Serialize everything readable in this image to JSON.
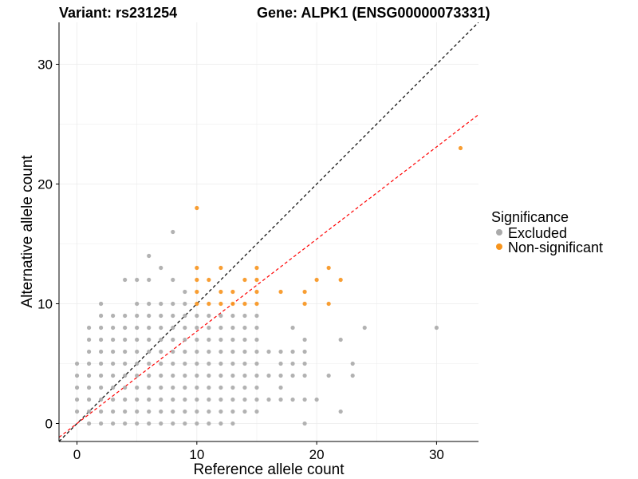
{
  "header": {
    "variant": "Variant: rs231254",
    "gene": "Gene: ALPK1 (ENSG00000073331)"
  },
  "chart_data": {
    "type": "scatter",
    "xlabel": "Reference allele count",
    "ylabel": "Alternative allele count",
    "xlim": [
      -1.5,
      33.5
    ],
    "ylim": [
      -1.5,
      33.5
    ],
    "x_ticks": [
      0,
      10,
      20,
      30
    ],
    "y_ticks": [
      0,
      10,
      20,
      30
    ],
    "grid": true,
    "legend": {
      "title": "Significance",
      "position": "right",
      "entries": [
        {
          "label": "Excluded",
          "color": "#AAAAAA"
        },
        {
          "label": "Non-significant",
          "color": "#F7941D"
        }
      ]
    },
    "reference_lines": [
      {
        "slope": 1,
        "intercept": 0,
        "color": "#000000",
        "style": "dashed"
      },
      {
        "slope": 0.77,
        "intercept": 0,
        "color": "#FF0000",
        "style": "dashed"
      }
    ],
    "series": [
      {
        "name": "Excluded",
        "color": "#AAAAAA",
        "points": [
          [
            0,
            1
          ],
          [
            0,
            2
          ],
          [
            0,
            3
          ],
          [
            0,
            4
          ],
          [
            0,
            5
          ],
          [
            1,
            0
          ],
          [
            1,
            1
          ],
          [
            1,
            2
          ],
          [
            1,
            3
          ],
          [
            1,
            4
          ],
          [
            1,
            5
          ],
          [
            1,
            6
          ],
          [
            1,
            7
          ],
          [
            1,
            8
          ],
          [
            2,
            0
          ],
          [
            2,
            1
          ],
          [
            2,
            2
          ],
          [
            2,
            3
          ],
          [
            2,
            4
          ],
          [
            2,
            5
          ],
          [
            2,
            6
          ],
          [
            2,
            7
          ],
          [
            2,
            8
          ],
          [
            2,
            9
          ],
          [
            2,
            10
          ],
          [
            3,
            0
          ],
          [
            3,
            1
          ],
          [
            3,
            2
          ],
          [
            3,
            3
          ],
          [
            3,
            4
          ],
          [
            3,
            5
          ],
          [
            3,
            6
          ],
          [
            3,
            7
          ],
          [
            3,
            8
          ],
          [
            3,
            9
          ],
          [
            4,
            0
          ],
          [
            4,
            1
          ],
          [
            4,
            2
          ],
          [
            4,
            3
          ],
          [
            4,
            4
          ],
          [
            4,
            5
          ],
          [
            4,
            6
          ],
          [
            4,
            7
          ],
          [
            4,
            8
          ],
          [
            4,
            9
          ],
          [
            4,
            12
          ],
          [
            5,
            0
          ],
          [
            5,
            1
          ],
          [
            5,
            2
          ],
          [
            5,
            3
          ],
          [
            5,
            4
          ],
          [
            5,
            5
          ],
          [
            5,
            6
          ],
          [
            5,
            7
          ],
          [
            5,
            8
          ],
          [
            5,
            9
          ],
          [
            5,
            10
          ],
          [
            5,
            12
          ],
          [
            6,
            0
          ],
          [
            6,
            1
          ],
          [
            6,
            2
          ],
          [
            6,
            3
          ],
          [
            6,
            4
          ],
          [
            6,
            5
          ],
          [
            6,
            6
          ],
          [
            6,
            7
          ],
          [
            6,
            8
          ],
          [
            6,
            9
          ],
          [
            6,
            10
          ],
          [
            6,
            12
          ],
          [
            6,
            14
          ],
          [
            7,
            0
          ],
          [
            7,
            1
          ],
          [
            7,
            2
          ],
          [
            7,
            3
          ],
          [
            7,
            4
          ],
          [
            7,
            5
          ],
          [
            7,
            6
          ],
          [
            7,
            7
          ],
          [
            7,
            8
          ],
          [
            7,
            9
          ],
          [
            7,
            10
          ],
          [
            7,
            13
          ],
          [
            8,
            0
          ],
          [
            8,
            1
          ],
          [
            8,
            2
          ],
          [
            8,
            3
          ],
          [
            8,
            4
          ],
          [
            8,
            5
          ],
          [
            8,
            6
          ],
          [
            8,
            7
          ],
          [
            8,
            8
          ],
          [
            8,
            9
          ],
          [
            8,
            10
          ],
          [
            8,
            12
          ],
          [
            8,
            16
          ],
          [
            9,
            0
          ],
          [
            9,
            1
          ],
          [
            9,
            2
          ],
          [
            9,
            3
          ],
          [
            9,
            4
          ],
          [
            9,
            5
          ],
          [
            9,
            6
          ],
          [
            9,
            7
          ],
          [
            9,
            8
          ],
          [
            9,
            9
          ],
          [
            9,
            10
          ],
          [
            9,
            11
          ],
          [
            10,
            0
          ],
          [
            10,
            1
          ],
          [
            10,
            2
          ],
          [
            10,
            3
          ],
          [
            10,
            4
          ],
          [
            10,
            5
          ],
          [
            10,
            6
          ],
          [
            10,
            7
          ],
          [
            10,
            8
          ],
          [
            10,
            9
          ],
          [
            11,
            0
          ],
          [
            11,
            1
          ],
          [
            11,
            2
          ],
          [
            11,
            3
          ],
          [
            11,
            4
          ],
          [
            11,
            5
          ],
          [
            11,
            6
          ],
          [
            11,
            7
          ],
          [
            11,
            8
          ],
          [
            11,
            9
          ],
          [
            12,
            0
          ],
          [
            12,
            1
          ],
          [
            12,
            2
          ],
          [
            12,
            3
          ],
          [
            12,
            4
          ],
          [
            12,
            5
          ],
          [
            12,
            6
          ],
          [
            12,
            7
          ],
          [
            12,
            8
          ],
          [
            12,
            9
          ],
          [
            13,
            0
          ],
          [
            13,
            1
          ],
          [
            13,
            2
          ],
          [
            13,
            3
          ],
          [
            13,
            4
          ],
          [
            13,
            5
          ],
          [
            13,
            6
          ],
          [
            13,
            7
          ],
          [
            13,
            8
          ],
          [
            13,
            9
          ],
          [
            14,
            1
          ],
          [
            14,
            2
          ],
          [
            14,
            3
          ],
          [
            14,
            4
          ],
          [
            14,
            5
          ],
          [
            14,
            6
          ],
          [
            14,
            7
          ],
          [
            14,
            8
          ],
          [
            14,
            9
          ],
          [
            15,
            1
          ],
          [
            15,
            2
          ],
          [
            15,
            3
          ],
          [
            15,
            4
          ],
          [
            15,
            5
          ],
          [
            15,
            6
          ],
          [
            15,
            7
          ],
          [
            15,
            8
          ],
          [
            15,
            9
          ],
          [
            16,
            2
          ],
          [
            16,
            4
          ],
          [
            16,
            6
          ],
          [
            17,
            2
          ],
          [
            17,
            3
          ],
          [
            17,
            4
          ],
          [
            17,
            5
          ],
          [
            17,
            6
          ],
          [
            18,
            2
          ],
          [
            18,
            4
          ],
          [
            18,
            5
          ],
          [
            18,
            6
          ],
          [
            18,
            8
          ],
          [
            19,
            0
          ],
          [
            19,
            2
          ],
          [
            19,
            4
          ],
          [
            19,
            5
          ],
          [
            19,
            6
          ],
          [
            19,
            7
          ],
          [
            20,
            2
          ],
          [
            21,
            4
          ],
          [
            22,
            1
          ],
          [
            22,
            7
          ],
          [
            23,
            4
          ],
          [
            23,
            5
          ],
          [
            24,
            8
          ],
          [
            30,
            8
          ]
        ]
      },
      {
        "name": "Non-significant",
        "color": "#F7941D",
        "points": [
          [
            10,
            10
          ],
          [
            10,
            11
          ],
          [
            10,
            12
          ],
          [
            10,
            13
          ],
          [
            10,
            18
          ],
          [
            11,
            10
          ],
          [
            11,
            12
          ],
          [
            12,
            10
          ],
          [
            12,
            11
          ],
          [
            12,
            13
          ],
          [
            13,
            10
          ],
          [
            13,
            11
          ],
          [
            14,
            10
          ],
          [
            14,
            12
          ],
          [
            15,
            10
          ],
          [
            15,
            11
          ],
          [
            15,
            12
          ],
          [
            15,
            13
          ],
          [
            17,
            11
          ],
          [
            19,
            10
          ],
          [
            19,
            11
          ],
          [
            20,
            12
          ],
          [
            21,
            10
          ],
          [
            21,
            13
          ],
          [
            22,
            12
          ],
          [
            32,
            23
          ]
        ]
      }
    ]
  }
}
